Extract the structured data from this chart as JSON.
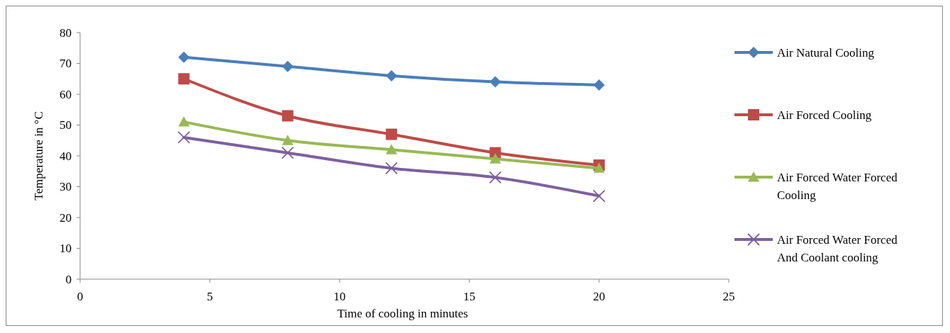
{
  "chart_data": {
    "type": "line",
    "xlabel": "Time of cooling in minutes",
    "ylabel": "Temperature in °C",
    "x": [
      4,
      8,
      12,
      16,
      20
    ],
    "series": [
      {
        "name": "Air Natural Cooling",
        "color": "#4a7ebb",
        "values": [
          72,
          69,
          66,
          64,
          63
        ],
        "marker": "diamond"
      },
      {
        "name": "Air Forced Cooling",
        "color": "#be4b48",
        "values": [
          65,
          53,
          47,
          41,
          37
        ],
        "marker": "square"
      },
      {
        "name": "Air Forced Water Forced Cooling",
        "color": "#98b954",
        "values": [
          51,
          45,
          42,
          39,
          36
        ],
        "marker": "triangle"
      },
      {
        "name": "Air Forced Water Forced And Coolant cooling",
        "color": "#7d60a0",
        "values": [
          46,
          41,
          36,
          33,
          27
        ],
        "marker": "cross"
      }
    ],
    "xlim": [
      0,
      25
    ],
    "xticks": [
      0,
      5,
      10,
      15,
      20,
      25
    ],
    "ylim": [
      0,
      80
    ],
    "yticks": [
      0,
      10,
      20,
      30,
      40,
      50,
      60,
      70,
      80
    ],
    "grid": false,
    "legend": "right"
  }
}
